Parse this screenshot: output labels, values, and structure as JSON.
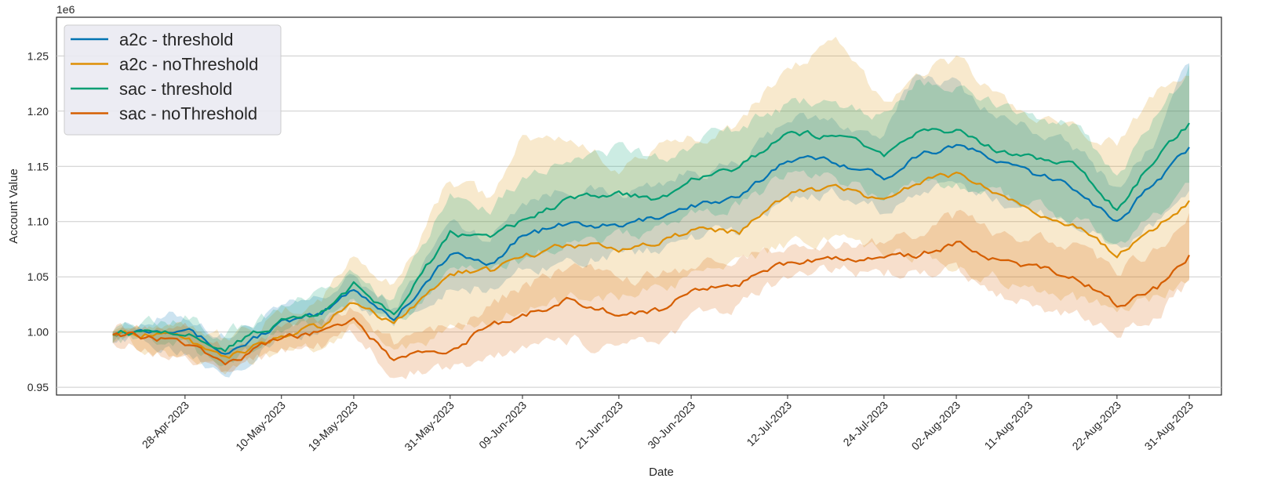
{
  "chart_data": {
    "type": "line",
    "title": "",
    "xlabel": "Date",
    "ylabel": "Account Value",
    "y_scale_label": "1e6",
    "ylim": [
      0.943,
      1.285
    ],
    "yticks": [
      0.95,
      1.0,
      1.05,
      1.1,
      1.15,
      1.2,
      1.25
    ],
    "ytick_labels": [
      "0.95",
      "1.00",
      "1.05",
      "1.10",
      "1.15",
      "1.20",
      "1.25"
    ],
    "xlim": [
      "2023-04-12",
      "2023-09-04"
    ],
    "xticks": [
      "2023-04-28",
      "2023-05-10",
      "2023-05-19",
      "2023-05-31",
      "2023-06-09",
      "2023-06-21",
      "2023-06-30",
      "2023-07-12",
      "2023-07-24",
      "2023-08-02",
      "2023-08-11",
      "2023-08-22",
      "2023-08-31"
    ],
    "xtick_labels": [
      "28-Apr-2023",
      "10-May-2023",
      "19-May-2023",
      "31-May-2023",
      "09-Jun-2023",
      "21-Jun-2023",
      "30-Jun-2023",
      "12-Jul-2023",
      "24-Jul-2023",
      "02-Aug-2023",
      "11-Aug-2023",
      "22-Aug-2023",
      "31-Aug-2023"
    ],
    "grid": "horizontal",
    "legend_position": "top-left",
    "x": [
      "2023-04-19",
      "2023-04-28",
      "2023-05-03",
      "2023-05-10",
      "2023-05-15",
      "2023-05-19",
      "2023-05-24",
      "2023-05-31",
      "2023-06-05",
      "2023-06-09",
      "2023-06-15",
      "2023-06-21",
      "2023-06-26",
      "2023-06-30",
      "2023-07-06",
      "2023-07-12",
      "2023-07-18",
      "2023-07-24",
      "2023-07-28",
      "2023-08-02",
      "2023-08-07",
      "2023-08-11",
      "2023-08-17",
      "2023-08-22",
      "2023-08-27",
      "2023-08-31"
    ],
    "series": [
      {
        "name": "a2c - threshold",
        "color": "#0173b2",
        "values": [
          1.0,
          1.005,
          0.98,
          1.008,
          1.015,
          1.04,
          1.012,
          1.07,
          1.062,
          1.088,
          1.098,
          1.095,
          1.105,
          1.115,
          1.12,
          1.158,
          1.155,
          1.14,
          1.16,
          1.17,
          1.155,
          1.145,
          1.13,
          1.1,
          1.138,
          1.165
        ],
        "lower": [
          0.995,
          0.985,
          0.965,
          0.995,
          1.0,
          1.03,
          1.005,
          1.04,
          1.04,
          1.055,
          1.065,
          1.07,
          1.075,
          1.085,
          1.09,
          1.12,
          1.125,
          1.11,
          1.125,
          1.13,
          1.12,
          1.11,
          1.1,
          1.075,
          1.1,
          1.13
        ],
        "upper": [
          1.005,
          1.015,
          0.995,
          1.02,
          1.03,
          1.05,
          1.02,
          1.1,
          1.085,
          1.12,
          1.13,
          1.125,
          1.135,
          1.145,
          1.15,
          1.195,
          1.19,
          1.175,
          1.235,
          1.225,
          1.195,
          1.185,
          1.165,
          1.13,
          1.175,
          1.245
        ]
      },
      {
        "name": "a2c - noThreshold",
        "color": "#de8f05",
        "values": [
          1.0,
          0.995,
          0.975,
          0.998,
          1.005,
          1.028,
          1.008,
          1.055,
          1.055,
          1.068,
          1.08,
          1.075,
          1.08,
          1.092,
          1.09,
          1.125,
          1.13,
          1.12,
          1.135,
          1.143,
          1.125,
          1.11,
          1.095,
          1.07,
          1.095,
          1.118
        ],
        "lower": [
          0.995,
          0.975,
          0.96,
          0.985,
          0.985,
          1.01,
          0.985,
          1.0,
          1.01,
          1.02,
          1.03,
          1.03,
          1.04,
          1.05,
          1.06,
          1.08,
          1.085,
          1.075,
          1.07,
          1.055,
          1.05,
          1.04,
          1.03,
          1.02,
          1.03,
          1.05
        ],
        "upper": [
          1.005,
          1.01,
          0.995,
          1.015,
          1.03,
          1.07,
          1.04,
          1.14,
          1.12,
          1.175,
          1.175,
          1.15,
          1.165,
          1.175,
          1.19,
          1.24,
          1.26,
          1.21,
          1.235,
          1.248,
          1.215,
          1.195,
          1.18,
          1.17,
          1.22,
          1.24
        ]
      },
      {
        "name": "sac - threshold",
        "color": "#029e73",
        "values": [
          1.0,
          1.0,
          0.985,
          1.01,
          1.018,
          1.043,
          1.015,
          1.09,
          1.085,
          1.1,
          1.12,
          1.125,
          1.12,
          1.138,
          1.15,
          1.18,
          1.178,
          1.16,
          1.18,
          1.182,
          1.165,
          1.16,
          1.15,
          1.11,
          1.16,
          1.188
        ],
        "lower": [
          0.995,
          0.988,
          0.97,
          1.0,
          1.005,
          1.033,
          1.005,
          1.055,
          1.055,
          1.065,
          1.08,
          1.085,
          1.09,
          1.105,
          1.115,
          1.14,
          1.14,
          1.12,
          1.135,
          1.135,
          1.125,
          1.115,
          1.1,
          1.08,
          1.105,
          1.13
        ],
        "upper": [
          1.005,
          1.012,
          0.998,
          1.022,
          1.032,
          1.053,
          1.025,
          1.125,
          1.115,
          1.14,
          1.16,
          1.165,
          1.155,
          1.17,
          1.185,
          1.205,
          1.21,
          1.195,
          1.225,
          1.22,
          1.205,
          1.2,
          1.185,
          1.14,
          1.195,
          1.24
        ]
      },
      {
        "name": "sac - noThreshold",
        "color": "#d55e00",
        "values": [
          1.0,
          0.99,
          0.97,
          0.995,
          1.0,
          1.01,
          0.975,
          0.985,
          1.005,
          1.015,
          1.03,
          1.015,
          1.02,
          1.035,
          1.045,
          1.062,
          1.065,
          1.065,
          1.07,
          1.08,
          1.065,
          1.06,
          1.05,
          1.025,
          1.04,
          1.07
        ],
        "lower": [
          0.995,
          0.975,
          0.958,
          0.985,
          0.988,
          0.998,
          0.962,
          0.968,
          0.978,
          0.985,
          0.992,
          0.985,
          0.995,
          1.01,
          1.025,
          1.05,
          1.055,
          1.055,
          1.055,
          1.055,
          1.035,
          1.025,
          1.015,
          1.0,
          1.015,
          1.045
        ],
        "upper": [
          1.005,
          1.005,
          0.985,
          1.005,
          1.012,
          1.022,
          0.99,
          1.005,
          1.025,
          1.04,
          1.06,
          1.045,
          1.05,
          1.06,
          1.068,
          1.075,
          1.08,
          1.08,
          1.09,
          1.105,
          1.09,
          1.085,
          1.08,
          1.055,
          1.075,
          1.105
        ]
      }
    ]
  }
}
